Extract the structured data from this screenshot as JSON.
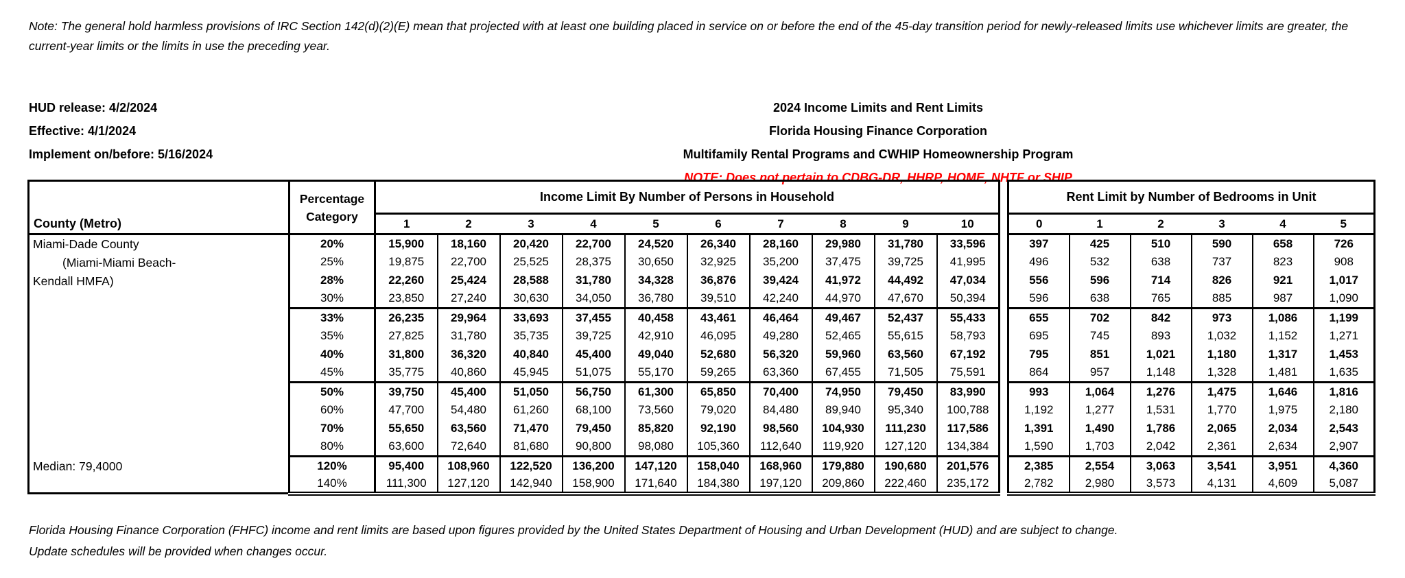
{
  "top_note": "Note: The general hold harmless provisions of IRC Section 142(d)(2)(E) mean that projected with at least one building placed in service on or before the end of the 45-day transition period for newly-released limits use whichever limits are greater, the current-year limits or the limits in use the preceding year.",
  "header_left": {
    "hud_release": "HUD release: 4/2/2024",
    "effective": "Effective: 4/1/2024",
    "implement": "Implement on/before: 5/16/2024"
  },
  "header_center": {
    "title": "2024 Income Limits and Rent Limits",
    "org": "Florida Housing Finance Corporation",
    "programs": "Multifamily Rental Programs and CWHIP Homeownership Program",
    "red_note": "NOTE: Does not pertain to CDBG-DR, HHRP, HOME, NHTF or SHIP",
    "red_note_color": "#FF0000"
  },
  "table": {
    "county_header": "County (Metro)",
    "percentage_header_line1": "Percentage",
    "percentage_header_line2": "Category",
    "income_header": "Income Limit By Number of Persons in Household",
    "rent_header": "Rent Limit by Number of Bedrooms in Unit",
    "income_cols": [
      "1",
      "2",
      "3",
      "4",
      "5",
      "6",
      "7",
      "8",
      "9",
      "10"
    ],
    "rent_cols": [
      "0",
      "1",
      "2",
      "3",
      "4",
      "5"
    ],
    "county_lines": [
      "Miami-Dade County",
      "(Miami-Miami Beach-",
      "Kendall HMFA)"
    ],
    "median_label": "Median: 79,4000",
    "rows": [
      {
        "pct": "20%",
        "bold": true,
        "sep": false,
        "income": [
          "15,900",
          "18,160",
          "20,420",
          "22,700",
          "24,520",
          "26,340",
          "28,160",
          "29,980",
          "31,780",
          "33,596"
        ],
        "rent": [
          "397",
          "425",
          "510",
          "590",
          "658",
          "726"
        ]
      },
      {
        "pct": "25%",
        "bold": false,
        "sep": false,
        "income": [
          "19,875",
          "22,700",
          "25,525",
          "28,375",
          "30,650",
          "32,925",
          "35,200",
          "37,475",
          "39,725",
          "41,995"
        ],
        "rent": [
          "496",
          "532",
          "638",
          "737",
          "823",
          "908"
        ]
      },
      {
        "pct": "28%",
        "bold": true,
        "sep": false,
        "income": [
          "22,260",
          "25,424",
          "28,588",
          "31,780",
          "34,328",
          "36,876",
          "39,424",
          "41,972",
          "44,492",
          "47,034"
        ],
        "rent": [
          "556",
          "596",
          "714",
          "826",
          "921",
          "1,017"
        ]
      },
      {
        "pct": "30%",
        "bold": false,
        "sep": false,
        "income": [
          "23,850",
          "27,240",
          "30,630",
          "34,050",
          "36,780",
          "39,510",
          "42,240",
          "44,970",
          "47,670",
          "50,394"
        ],
        "rent": [
          "596",
          "638",
          "765",
          "885",
          "987",
          "1,090"
        ]
      },
      {
        "pct": "33%",
        "bold": true,
        "sep": true,
        "income": [
          "26,235",
          "29,964",
          "33,693",
          "37,455",
          "40,458",
          "43,461",
          "46,464",
          "49,467",
          "52,437",
          "55,433"
        ],
        "rent": [
          "655",
          "702",
          "842",
          "973",
          "1,086",
          "1,199"
        ]
      },
      {
        "pct": "35%",
        "bold": false,
        "sep": false,
        "income": [
          "27,825",
          "31,780",
          "35,735",
          "39,725",
          "42,910",
          "46,095",
          "49,280",
          "52,465",
          "55,615",
          "58,793"
        ],
        "rent": [
          "695",
          "745",
          "893",
          "1,032",
          "1,152",
          "1,271"
        ]
      },
      {
        "pct": "40%",
        "bold": true,
        "sep": false,
        "income": [
          "31,800",
          "36,320",
          "40,840",
          "45,400",
          "49,040",
          "52,680",
          "56,320",
          "59,960",
          "63,560",
          "67,192"
        ],
        "rent": [
          "795",
          "851",
          "1,021",
          "1,180",
          "1,317",
          "1,453"
        ]
      },
      {
        "pct": "45%",
        "bold": false,
        "sep": false,
        "income": [
          "35,775",
          "40,860",
          "45,945",
          "51,075",
          "55,170",
          "59,265",
          "63,360",
          "67,455",
          "71,505",
          "75,591"
        ],
        "rent": [
          "864",
          "957",
          "1,148",
          "1,328",
          "1,481",
          "1,635"
        ]
      },
      {
        "pct": "50%",
        "bold": true,
        "sep": true,
        "income": [
          "39,750",
          "45,400",
          "51,050",
          "56,750",
          "61,300",
          "65,850",
          "70,400",
          "74,950",
          "79,450",
          "83,990"
        ],
        "rent": [
          "993",
          "1,064",
          "1,276",
          "1,475",
          "1,646",
          "1,816"
        ]
      },
      {
        "pct": "60%",
        "bold": false,
        "sep": false,
        "income": [
          "47,700",
          "54,480",
          "61,260",
          "68,100",
          "73,560",
          "79,020",
          "84,480",
          "89,940",
          "95,340",
          "100,788"
        ],
        "rent": [
          "1,192",
          "1,277",
          "1,531",
          "1,770",
          "1,975",
          "2,180"
        ]
      },
      {
        "pct": "70%",
        "bold": true,
        "sep": false,
        "income": [
          "55,650",
          "63,560",
          "71,470",
          "79,450",
          "85,820",
          "92,190",
          "98,560",
          "104,930",
          "111,230",
          "117,586"
        ],
        "rent": [
          "1,391",
          "1,490",
          "1,786",
          "2,065",
          "2,034",
          "2,543"
        ]
      },
      {
        "pct": "80%",
        "bold": false,
        "sep": false,
        "income": [
          "63,600",
          "72,640",
          "81,680",
          "90,800",
          "98,080",
          "105,360",
          "112,640",
          "119,920",
          "127,120",
          "134,384"
        ],
        "rent": [
          "1,590",
          "1,703",
          "2,042",
          "2,361",
          "2,634",
          "2,907"
        ]
      },
      {
        "pct": "120%",
        "bold": true,
        "sep": true,
        "income": [
          "95,400",
          "108,960",
          "122,520",
          "136,200",
          "147,120",
          "158,040",
          "168,960",
          "179,880",
          "190,680",
          "201,576"
        ],
        "rent": [
          "2,385",
          "2,554",
          "3,063",
          "3,541",
          "3,951",
          "4,360"
        ]
      },
      {
        "pct": "140%",
        "bold": false,
        "sep": false,
        "income": [
          "111,300",
          "127,120",
          "142,940",
          "158,900",
          "171,640",
          "184,380",
          "197,120",
          "209,860",
          "222,460",
          "235,172"
        ],
        "rent": [
          "2,782",
          "2,980",
          "3,573",
          "4,131",
          "4,609",
          "5,087"
        ]
      }
    ]
  },
  "footer": {
    "line1": "Florida Housing Finance Corporation (FHFC) income and rent limits are based upon figures provided by the United States Department of Housing and Urban Development (HUD) and are subject to change.",
    "line2": "Update schedules will be provided when changes occur."
  }
}
